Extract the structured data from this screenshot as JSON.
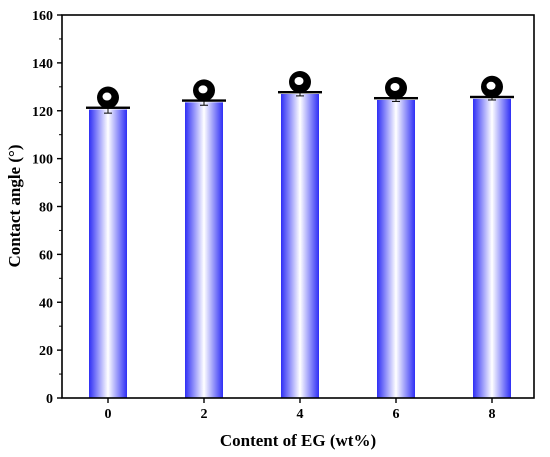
{
  "chart_data": {
    "type": "bar",
    "title": "",
    "xlabel": "Content of EG (wt%)",
    "ylabel": "Contact angle (°)",
    "categories": [
      "0",
      "2",
      "4",
      "6",
      "8"
    ],
    "values": [
      120.5,
      123.5,
      127,
      124.5,
      125
    ],
    "errors": [
      1.5,
      1.2,
      0.8,
      0.6,
      0.5
    ],
    "ylim": [
      0,
      160
    ],
    "yticks": [
      "0",
      "20",
      "40",
      "60",
      "80",
      "100",
      "120",
      "140",
      "160"
    ],
    "grid": false,
    "bar_color": "#3a3aff",
    "droplet_icon": "water-droplet-icon"
  }
}
